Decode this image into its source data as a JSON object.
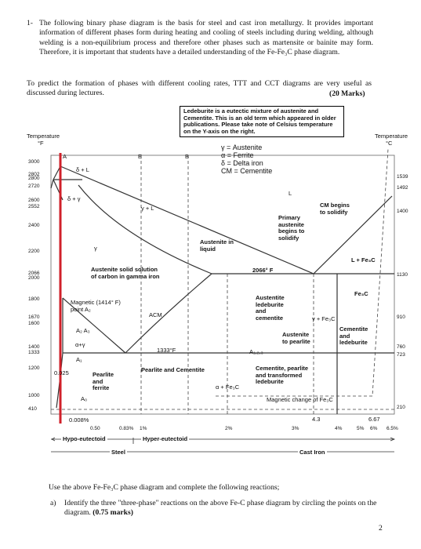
{
  "question": {
    "number": "1-",
    "text": "The following binary phase diagram is the basis for steel and cast iron metallurgy. It provides important information of different phases form during heating and cooling of steels including during welding, although welding is a non-equilibrium process and therefore other phases such as martensite or bainite may form. Therefore, it is important that students have a detailed understanding of the Fe-Fe₃C phase diagram.",
    "intro": "To predict the formation of phases with different cooling rates, TTT and CCT diagrams are very useful as discussed during lectures.",
    "marks": "(20 Marks)"
  },
  "diagram": {
    "note": "Ledeburite is a eutectic mixture of austenite and Cementite. This is an old term which appeared in older publications. Please take note of Celsius temperature on the Y-axis on the right.",
    "left_axis": {
      "title": "Temperature",
      "unit": "°F",
      "ticks": [
        "3000",
        "2802",
        "2800",
        "2720",
        "2600",
        "2552",
        "2400",
        "2200",
        "2066",
        "2000",
        "1800",
        "1670",
        "1600",
        "1400",
        "1333",
        "1200",
        "1000",
        "410"
      ]
    },
    "right_axis": {
      "title": "Temperature",
      "unit": "°C",
      "ticks": [
        "1539",
        "1492",
        "1400",
        "1130",
        "910",
        "760",
        "723",
        "210"
      ]
    },
    "legend": [
      "γ = Austenite",
      "α = Ferrite",
      "δ = Delta iron",
      "CM = Cementite"
    ],
    "labels": [
      "A",
      "E",
      "B",
      "δ + L",
      "δ + γ",
      "γ + L",
      "γ",
      "Austenite solid solution\nof carbon in gamma iron",
      "Austenite in\nliquid",
      "L",
      "Primary\naustenite\nbegins to\nsolidify",
      "CM begins\nto solidify",
      "2066° F",
      "L + Fe₃C",
      "Fe₃C",
      "Magnetic (1414° F)\npoint A₂",
      "ACM",
      "A₂  A₃",
      "α+γ",
      "1333°F",
      "A₁",
      "0.025",
      "Pearlite\nand\nferrite",
      "Pearlite and Cementite",
      "A₀",
      "Austentite\nledeburite\nand\ncementite",
      "γ + Fe₃C",
      "Austenite\nto pearlite",
      "A₁,₂,₃",
      "Cementite\nand\nledeburite",
      "Cementite, pearlite\nand transformed\nledeburite",
      "α + Fe₃C",
      "Magnetic change of Fe₃C",
      "0.008%",
      "4.3",
      "6.67"
    ],
    "x_labels": [
      "0.50",
      "0.83%",
      "1%",
      "2%",
      "3%",
      "4%",
      "5%",
      "6%",
      "6.5%"
    ],
    "classes": [
      "Hypo-eutectoid",
      "Hyper-eutectoid",
      "Steel",
      "Cast Iron"
    ]
  },
  "footer": {
    "instruction": "Use the above Fe-Fe₃C phase diagram and complete the following reactions;",
    "part_a": {
      "label": "a)",
      "text": "Identify the three \"three-phase\" reactions on the above Fe-C phase diagram by circling the points on the diagram.",
      "marks": "(0.75 marks)"
    },
    "page_number": "2"
  }
}
